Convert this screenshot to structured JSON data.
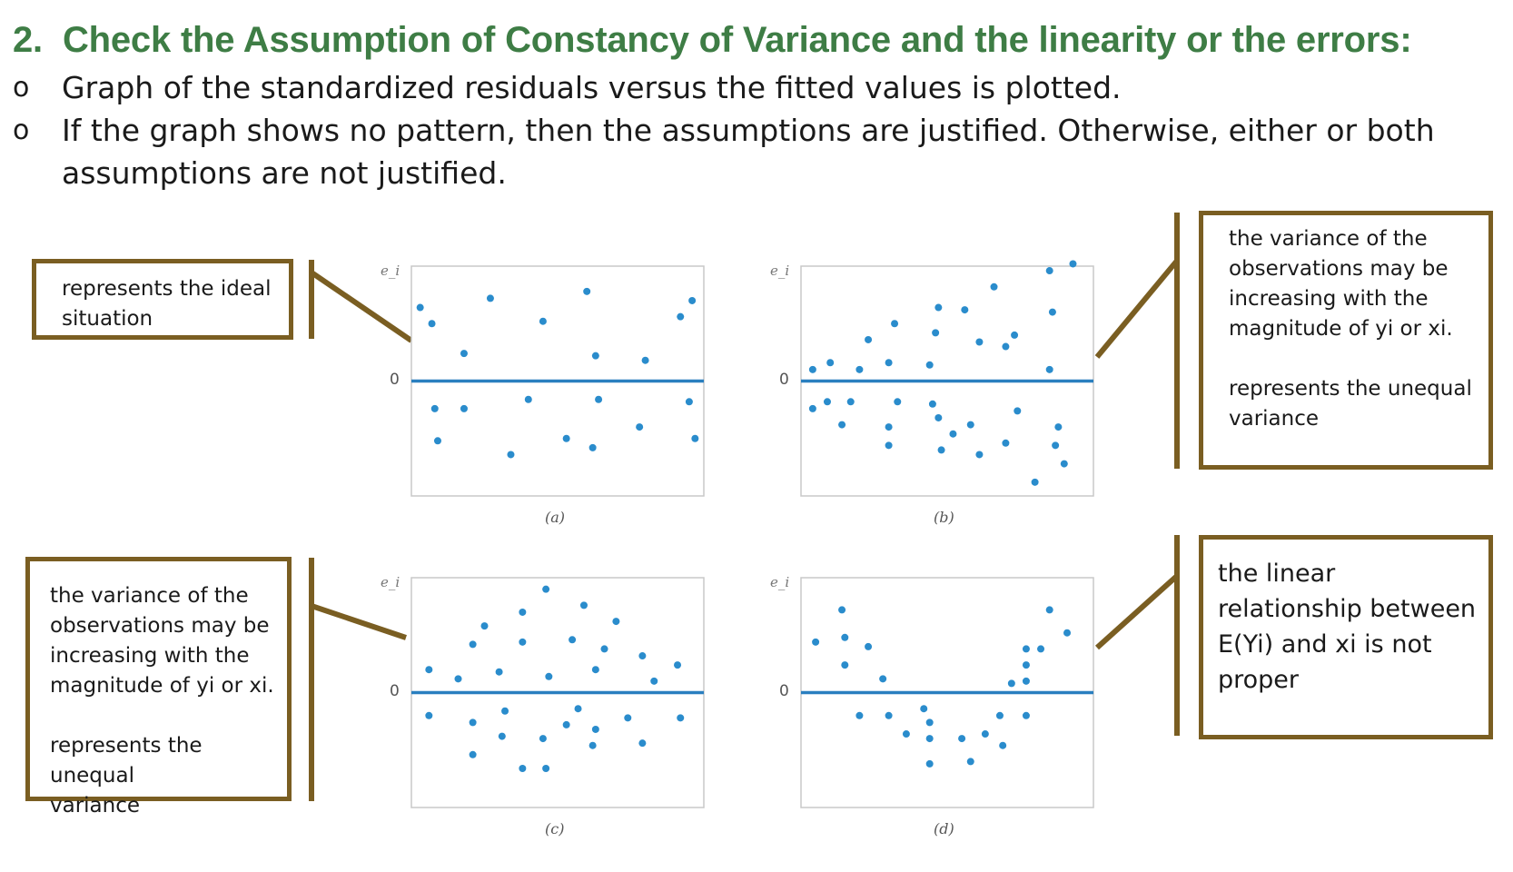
{
  "slide": {
    "heading_number": "2.",
    "heading_text": "Check the Assumption of Constancy of Variance and the linearity or the errors:",
    "bullet_mark": "o",
    "bullets": [
      "Graph of the standardized residuals versus the fitted values is plotted.",
      "If the graph shows no pattern, then the assumptions are justified. Otherwise, either or both",
      "assumptions are not justified."
    ],
    "colors": {
      "heading": "#3e7d45",
      "callout_border": "#7a5e22",
      "plot_line": "#2a7fbf",
      "plot_point": "#2a8ccc"
    }
  },
  "callouts": {
    "ideal": "represents the ideal\nsituation",
    "increasing_b": "the variance of the\nobservations may be\nincreasing with the\nmagnitude of yi or xi.\n\nrepresents the unequal\nvariance",
    "increasing_c": "the variance of the\nobservations may be\nincreasing with the\nmagnitude of yi or xi.\n\nrepresents the unequal\nvariance",
    "nonlinear": "the linear\nrelationship between\nE(Yi) and xi is not\nproper"
  },
  "chart_data": [
    {
      "type": "scatter",
      "panel": "(a)",
      "ylabel": "e_i",
      "zero_label": "0",
      "description_level": "constant band",
      "points": [
        [
          0.03,
          0.32
        ],
        [
          0.07,
          0.25
        ],
        [
          0.18,
          0.12
        ],
        [
          0.27,
          0.36
        ],
        [
          0.45,
          0.26
        ],
        [
          0.6,
          0.39
        ],
        [
          0.63,
          0.11
        ],
        [
          0.8,
          0.09
        ],
        [
          0.92,
          0.28
        ],
        [
          0.96,
          0.35
        ],
        [
          0.08,
          -0.12
        ],
        [
          0.09,
          -0.26
        ],
        [
          0.18,
          -0.12
        ],
        [
          0.34,
          -0.32
        ],
        [
          0.4,
          -0.08
        ],
        [
          0.53,
          -0.25
        ],
        [
          0.64,
          -0.08
        ],
        [
          0.62,
          -0.29
        ],
        [
          0.78,
          -0.2
        ],
        [
          0.95,
          -0.09
        ],
        [
          0.97,
          -0.25
        ]
      ]
    },
    {
      "type": "scatter",
      "panel": "(b)",
      "ylabel": "e_i",
      "zero_label": "0",
      "description_level": "funnel widening",
      "points": [
        [
          0.04,
          0.05
        ],
        [
          0.1,
          0.08
        ],
        [
          0.2,
          0.05
        ],
        [
          0.23,
          0.18
        ],
        [
          0.3,
          0.08
        ],
        [
          0.32,
          0.25
        ],
        [
          0.44,
          0.07
        ],
        [
          0.46,
          0.21
        ],
        [
          0.47,
          0.32
        ],
        [
          0.56,
          0.31
        ],
        [
          0.61,
          0.17
        ],
        [
          0.66,
          0.41
        ],
        [
          0.7,
          0.15
        ],
        [
          0.73,
          0.2
        ],
        [
          0.85,
          0.05
        ],
        [
          0.86,
          0.3
        ],
        [
          0.85,
          0.48
        ],
        [
          0.93,
          0.51
        ],
        [
          0.04,
          -0.12
        ],
        [
          0.09,
          -0.09
        ],
        [
          0.14,
          -0.19
        ],
        [
          0.17,
          -0.09
        ],
        [
          0.3,
          -0.2
        ],
        [
          0.3,
          -0.28
        ],
        [
          0.33,
          -0.09
        ],
        [
          0.45,
          -0.1
        ],
        [
          0.47,
          -0.16
        ],
        [
          0.48,
          -0.3
        ],
        [
          0.52,
          -0.23
        ],
        [
          0.58,
          -0.19
        ],
        [
          0.61,
          -0.32
        ],
        [
          0.7,
          -0.27
        ],
        [
          0.74,
          -0.13
        ],
        [
          0.8,
          -0.44
        ],
        [
          0.88,
          -0.2
        ],
        [
          0.87,
          -0.28
        ],
        [
          0.9,
          -0.36
        ]
      ]
    },
    {
      "type": "scatter",
      "panel": "(c)",
      "ylabel": "e_i",
      "zero_label": "0",
      "description_level": "diamond",
      "points": [
        [
          0.06,
          0.1
        ],
        [
          0.16,
          0.06
        ],
        [
          0.21,
          0.21
        ],
        [
          0.25,
          0.29
        ],
        [
          0.3,
          0.09
        ],
        [
          0.38,
          0.22
        ],
        [
          0.38,
          0.35
        ],
        [
          0.46,
          0.45
        ],
        [
          0.47,
          0.07
        ],
        [
          0.55,
          0.23
        ],
        [
          0.59,
          0.38
        ],
        [
          0.63,
          0.1
        ],
        [
          0.66,
          0.19
        ],
        [
          0.7,
          0.31
        ],
        [
          0.79,
          0.16
        ],
        [
          0.83,
          0.05
        ],
        [
          0.91,
          0.12
        ],
        [
          0.06,
          -0.1
        ],
        [
          0.21,
          -0.13
        ],
        [
          0.21,
          -0.27
        ],
        [
          0.32,
          -0.08
        ],
        [
          0.31,
          -0.19
        ],
        [
          0.38,
          -0.33
        ],
        [
          0.45,
          -0.2
        ],
        [
          0.46,
          -0.33
        ],
        [
          0.53,
          -0.14
        ],
        [
          0.57,
          -0.07
        ],
        [
          0.62,
          -0.23
        ],
        [
          0.63,
          -0.16
        ],
        [
          0.74,
          -0.11
        ],
        [
          0.79,
          -0.22
        ],
        [
          0.92,
          -0.11
        ]
      ]
    },
    {
      "type": "scatter",
      "panel": "(d)",
      "ylabel": "e_i",
      "zero_label": "0",
      "description_level": "curved U",
      "points": [
        [
          0.05,
          0.22
        ],
        [
          0.14,
          0.36
        ],
        [
          0.15,
          0.24
        ],
        [
          0.15,
          0.12
        ],
        [
          0.23,
          0.2
        ],
        [
          0.28,
          0.06
        ],
        [
          0.2,
          -0.1
        ],
        [
          0.3,
          -0.1
        ],
        [
          0.36,
          -0.18
        ],
        [
          0.42,
          -0.07
        ],
        [
          0.44,
          -0.13
        ],
        [
          0.44,
          -0.2
        ],
        [
          0.44,
          -0.31
        ],
        [
          0.55,
          -0.2
        ],
        [
          0.58,
          -0.3
        ],
        [
          0.63,
          -0.18
        ],
        [
          0.68,
          -0.1
        ],
        [
          0.69,
          -0.23
        ],
        [
          0.77,
          -0.1
        ],
        [
          0.72,
          0.04
        ],
        [
          0.77,
          0.05
        ],
        [
          0.77,
          0.12
        ],
        [
          0.77,
          0.19
        ],
        [
          0.82,
          0.19
        ],
        [
          0.85,
          0.36
        ],
        [
          0.91,
          0.26
        ]
      ]
    }
  ]
}
